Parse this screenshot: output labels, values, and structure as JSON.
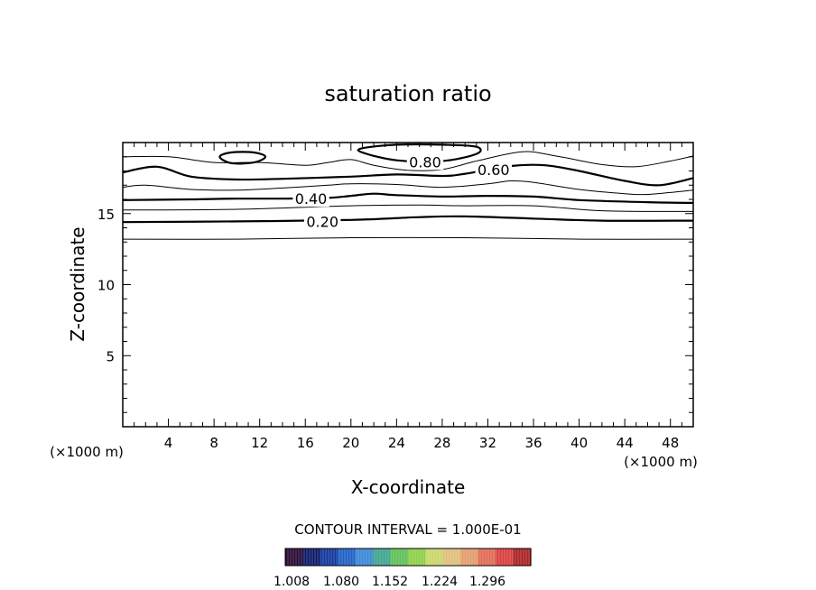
{
  "chart_data": {
    "type": "contour",
    "title": "saturation ratio",
    "xlabel": "X-coordinate",
    "ylabel": "Z-coordinate",
    "x_unit_label": "(×1000 m)",
    "xlim": [
      0,
      50
    ],
    "ylim": [
      0,
      20
    ],
    "xticks": [
      4,
      8,
      12,
      16,
      20,
      24,
      28,
      32,
      36,
      40,
      44,
      48
    ],
    "yticks": [
      5,
      10,
      15
    ],
    "contour_interval_text": "CONTOUR INTERVAL = 1.000E-01",
    "contours": [
      {
        "level": 0.1,
        "major": false,
        "closed": false,
        "points": [
          [
            0,
            13.2
          ],
          [
            10,
            13.2
          ],
          [
            20,
            13.3
          ],
          [
            30,
            13.3
          ],
          [
            40,
            13.2
          ],
          [
            50,
            13.2
          ]
        ]
      },
      {
        "level": 0.2,
        "major": true,
        "closed": false,
        "label": "0.20",
        "label_at": [
          17.5,
          14.45
        ],
        "points": [
          [
            0,
            14.4
          ],
          [
            10,
            14.45
          ],
          [
            20,
            14.55
          ],
          [
            26,
            14.75
          ],
          [
            30,
            14.8
          ],
          [
            36,
            14.65
          ],
          [
            42,
            14.5
          ],
          [
            50,
            14.5
          ]
        ]
      },
      {
        "level": 0.3,
        "major": false,
        "closed": false,
        "points": [
          [
            0,
            15.25
          ],
          [
            10,
            15.3
          ],
          [
            20,
            15.55
          ],
          [
            26,
            15.6
          ],
          [
            30,
            15.55
          ],
          [
            36,
            15.55
          ],
          [
            42,
            15.2
          ],
          [
            50,
            15.15
          ]
        ]
      },
      {
        "level": 0.4,
        "major": true,
        "closed": false,
        "label": "0.40",
        "label_at": [
          16.5,
          16.05
        ],
        "points": [
          [
            0,
            15.95
          ],
          [
            6,
            16.0
          ],
          [
            10,
            16.05
          ],
          [
            14,
            16.05
          ],
          [
            18,
            16.1
          ],
          [
            20,
            16.25
          ],
          [
            22,
            16.4
          ],
          [
            24,
            16.3
          ],
          [
            28,
            16.2
          ],
          [
            32,
            16.25
          ],
          [
            36,
            16.2
          ],
          [
            40,
            15.95
          ],
          [
            46,
            15.8
          ],
          [
            50,
            15.75
          ]
        ]
      },
      {
        "level": 0.5,
        "major": false,
        "closed": false,
        "points": [
          [
            0,
            16.85
          ],
          [
            2,
            17.0
          ],
          [
            6,
            16.7
          ],
          [
            10,
            16.65
          ],
          [
            14,
            16.8
          ],
          [
            18,
            17.0
          ],
          [
            20,
            17.1
          ],
          [
            24,
            17.05
          ],
          [
            28,
            16.85
          ],
          [
            32,
            17.1
          ],
          [
            34,
            17.3
          ],
          [
            36,
            17.2
          ],
          [
            40,
            16.7
          ],
          [
            44,
            16.4
          ],
          [
            46,
            16.35
          ],
          [
            50,
            16.65
          ]
        ]
      },
      {
        "level": 0.6,
        "major": true,
        "closed": false,
        "label": "0.60",
        "label_at": [
          32.5,
          18.1
        ],
        "points": [
          [
            0,
            17.9
          ],
          [
            3,
            18.3
          ],
          [
            6,
            17.6
          ],
          [
            10,
            17.4
          ],
          [
            14,
            17.45
          ],
          [
            20,
            17.6
          ],
          [
            24,
            17.75
          ],
          [
            28,
            17.65
          ],
          [
            30,
            17.8
          ],
          [
            34,
            18.35
          ],
          [
            37,
            18.4
          ],
          [
            40,
            18.0
          ],
          [
            44,
            17.3
          ],
          [
            47,
            17.0
          ],
          [
            50,
            17.5
          ]
        ]
      },
      {
        "level": 0.7,
        "major": false,
        "closed": false,
        "points": [
          [
            0,
            19.0
          ],
          [
            4,
            19.0
          ],
          [
            8,
            18.6
          ],
          [
            12,
            18.6
          ],
          [
            16,
            18.4
          ],
          [
            18,
            18.6
          ],
          [
            20,
            18.8
          ],
          [
            22,
            18.4
          ],
          [
            25,
            18.05
          ],
          [
            28,
            18.1
          ],
          [
            31,
            18.7
          ],
          [
            35,
            19.35
          ],
          [
            38,
            19.05
          ],
          [
            42,
            18.45
          ],
          [
            45,
            18.3
          ],
          [
            48,
            18.7
          ],
          [
            50,
            19.05
          ]
        ]
      },
      {
        "level": 0.8,
        "major": true,
        "closed": true,
        "label": "0.80",
        "label_at": [
          26.5,
          18.65
        ],
        "points": [
          [
            21,
            19.6
          ],
          [
            24,
            19.85
          ],
          [
            28,
            19.85
          ],
          [
            31,
            19.7
          ],
          [
            31,
            19.2
          ],
          [
            28,
            18.7
          ],
          [
            24,
            18.75
          ],
          [
            21,
            19.3
          ]
        ]
      },
      {
        "level": 0.8,
        "major": true,
        "closed": true,
        "points": [
          [
            8.5,
            19.0
          ],
          [
            9.5,
            19.3
          ],
          [
            11.5,
            19.3
          ],
          [
            12.5,
            19.0
          ],
          [
            11.5,
            18.6
          ],
          [
            9.5,
            18.55
          ]
        ]
      }
    ],
    "colorbar": {
      "colors": [
        "#2a0b35",
        "#0f1a6a",
        "#14399e",
        "#2060c6",
        "#3b88d6",
        "#3fa58e",
        "#62bf57",
        "#8fcf4a",
        "#c8d66b",
        "#dfbf7c",
        "#e39c6c",
        "#e06b55",
        "#d93f3f",
        "#ab2325"
      ],
      "tick_labels": [
        "1.008",
        "1.080",
        "1.152",
        "1.224",
        "1.296"
      ]
    }
  }
}
